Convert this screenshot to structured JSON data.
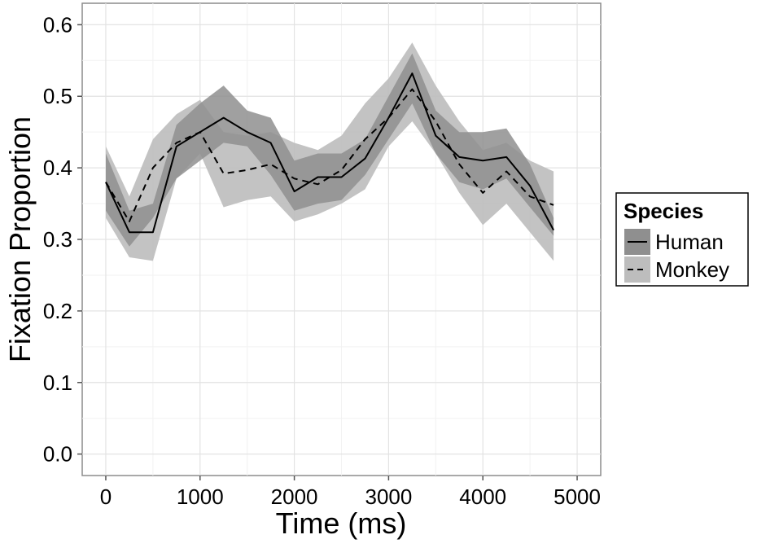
{
  "chart_data": {
    "type": "line",
    "xlabel": "Time (ms)",
    "ylabel": "Fixation Proportion",
    "xlim": [
      -250,
      5250
    ],
    "ylim": [
      -0.03,
      0.63
    ],
    "x_ticks": [
      0,
      1000,
      2000,
      3000,
      4000,
      5000
    ],
    "x_tick_labels": [
      "0",
      "1000",
      "2000",
      "3000",
      "4000",
      "5000"
    ],
    "y_ticks": [
      0.0,
      0.1,
      0.2,
      0.3,
      0.4,
      0.5,
      0.6
    ],
    "y_tick_labels": [
      "0.0",
      "0.1",
      "0.2",
      "0.3",
      "0.4",
      "0.5",
      "0.6"
    ],
    "grid": true,
    "x": [
      0,
      250,
      500,
      750,
      1000,
      1250,
      1500,
      1750,
      2000,
      2250,
      2500,
      2750,
      3000,
      3250,
      3500,
      3750,
      4000,
      4250,
      4500,
      4750
    ],
    "series": [
      {
        "name": "Human",
        "line_style": "solid",
        "values": [
          0.38,
          0.31,
          0.31,
          0.43,
          0.45,
          0.47,
          0.45,
          0.435,
          0.367,
          0.387,
          0.387,
          0.413,
          0.47,
          0.532,
          0.445,
          0.415,
          0.41,
          0.415,
          0.375,
          0.313
        ],
        "lower": [
          0.34,
          0.29,
          0.33,
          0.385,
          0.41,
          0.435,
          0.43,
          0.39,
          0.34,
          0.35,
          0.355,
          0.39,
          0.44,
          0.49,
          0.42,
          0.38,
          0.37,
          0.385,
          0.345,
          0.305
        ],
        "upper": [
          0.42,
          0.34,
          0.35,
          0.46,
          0.49,
          0.515,
          0.48,
          0.47,
          0.41,
          0.42,
          0.42,
          0.44,
          0.5,
          0.56,
          0.48,
          0.45,
          0.45,
          0.455,
          0.405,
          0.33
        ]
      },
      {
        "name": "Monkey",
        "line_style": "dashed",
        "values": [
          0.38,
          0.325,
          0.4,
          0.435,
          0.45,
          0.392,
          0.397,
          0.405,
          0.385,
          0.377,
          0.397,
          0.44,
          0.47,
          0.51,
          0.465,
          0.405,
          0.365,
          0.395,
          0.36,
          0.348
        ]
      }
    ],
    "band_fill": "#bdbdbd",
    "band_overlap_fill": "#8f8f8f",
    "monkey_lower": [
      0.33,
      0.275,
      0.27,
      0.385,
      0.42,
      0.345,
      0.355,
      0.36,
      0.325,
      0.335,
      0.35,
      0.37,
      0.43,
      0.465,
      0.42,
      0.365,
      0.32,
      0.35,
      0.31,
      0.27
    ],
    "monkey_upper": [
      0.43,
      0.36,
      0.44,
      0.475,
      0.495,
      0.45,
      0.445,
      0.45,
      0.435,
      0.425,
      0.445,
      0.49,
      0.525,
      0.575,
      0.515,
      0.465,
      0.425,
      0.435,
      0.41,
      0.395
    ],
    "legend": {
      "title": "Species",
      "placement": "right",
      "entries": [
        "Human",
        "Monkey"
      ]
    }
  }
}
